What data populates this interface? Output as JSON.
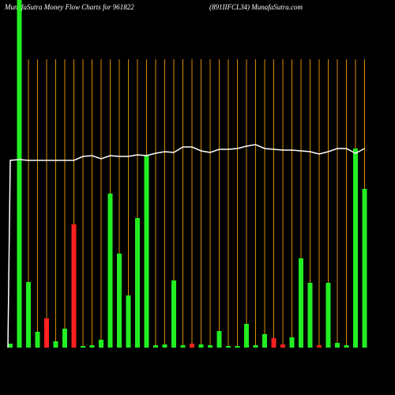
{
  "chart_data": {
    "type": "bar",
    "title": "MunafaSutra  Money Flow  Charts for 961822",
    "subtitle": "(891IIFCL34) MunafaSutra.com",
    "ylim": [
      0,
      440
    ],
    "values": [
      5,
      440,
      83,
      20,
      37,
      8,
      24,
      156,
      2,
      3,
      10,
      195,
      119,
      66,
      164,
      244,
      3,
      4,
      85,
      3,
      5,
      4,
      3,
      21,
      2,
      2,
      30,
      3,
      17,
      12,
      4,
      13,
      113,
      82,
      3,
      82,
      6,
      3,
      252,
      201
    ],
    "colors": [
      "#22ee22",
      "#22ee22",
      "#22ee22",
      "#22ee22",
      "#ff2020",
      "#22ee22",
      "#22ee22",
      "#ff2020",
      "#22ee22",
      "#22ee22",
      "#22ee22",
      "#22ee22",
      "#22ee22",
      "#22ee22",
      "#22ee22",
      "#22ee22",
      "#22ee22",
      "#22ee22",
      "#22ee22",
      "#22ee22",
      "#ff2020",
      "#22ee22",
      "#22ee22",
      "#22ee22",
      "#22ee22",
      "#22ee22",
      "#22ee22",
      "#22ee22",
      "#22ee22",
      "#ff2020",
      "#ff2020",
      "#22ee22",
      "#22ee22",
      "#22ee22",
      "#ff2020",
      "#22ee22",
      "#22ee22",
      "#22ee22",
      "#22ee22",
      "#22ee22"
    ],
    "line": {
      "color": "#ffffff",
      "values": [
        237,
        238,
        237,
        237,
        237,
        237,
        237,
        237,
        242,
        243,
        239,
        243,
        242,
        242,
        244,
        243,
        246,
        248,
        247,
        254,
        254,
        249,
        247,
        251,
        251,
        252,
        255,
        257,
        252,
        251,
        250,
        250,
        249,
        248,
        245,
        248,
        252,
        252,
        246,
        252
      ]
    }
  }
}
